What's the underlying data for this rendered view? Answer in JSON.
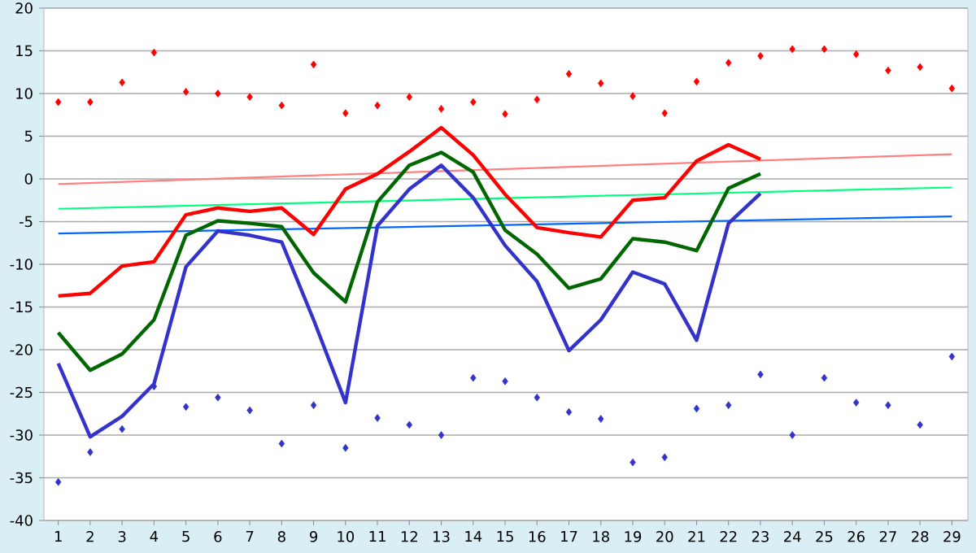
{
  "chart_data": {
    "type": "line",
    "categories": [
      "1",
      "2",
      "3",
      "4",
      "5",
      "6",
      "7",
      "8",
      "9",
      "10",
      "11",
      "12",
      "13",
      "14",
      "15",
      "16",
      "17",
      "18",
      "19",
      "20",
      "21",
      "22",
      "23",
      "24",
      "25",
      "26",
      "27",
      "28",
      "29"
    ],
    "series": [
      {
        "type": "scatter",
        "color": "#ff0000",
        "marker": "diamond",
        "values": [
          9.0,
          9.0,
          11.3,
          14.8,
          10.2,
          10.0,
          9.6,
          8.6,
          13.4,
          7.7,
          8.6,
          9.6,
          8.2,
          9.0,
          7.6,
          9.3,
          12.3,
          11.2,
          9.7,
          7.7,
          11.4,
          13.6,
          14.4,
          15.2,
          15.2,
          14.6,
          12.7,
          13.1,
          10.6
        ]
      },
      {
        "type": "scatter",
        "color": "#3333cc",
        "marker": "diamond",
        "values": [
          -35.5,
          -32.0,
          -29.3,
          -24.3,
          -26.7,
          -25.6,
          -27.1,
          -31.0,
          -26.5,
          -31.5,
          -28.0,
          -28.8,
          -30.0,
          -23.3,
          -23.7,
          -25.6,
          -27.3,
          -28.1,
          -33.2,
          -32.6,
          -26.9,
          -26.5,
          -22.9,
          -30.0,
          -23.3,
          -26.2,
          -26.5,
          -28.8,
          -20.8
        ]
      },
      {
        "type": "line",
        "color": "#ff8080",
        "x": [
          "1",
          "29"
        ],
        "values": [
          -0.6,
          2.9
        ]
      },
      {
        "type": "line",
        "color": "#00ff80",
        "x": [
          "1",
          "29"
        ],
        "values": [
          -3.5,
          -1.0
        ]
      },
      {
        "type": "line",
        "color": "#0066ff",
        "x": [
          "1",
          "29"
        ],
        "values": [
          -6.4,
          -4.4
        ]
      },
      {
        "type": "line",
        "color": "#ff0000",
        "values": [
          -13.7,
          -13.4,
          -10.2,
          -9.7,
          -4.2,
          -3.4,
          -3.8,
          -3.4,
          -6.5,
          -1.2,
          0.6,
          3.2,
          6.0,
          2.8,
          -1.8,
          -5.7,
          -6.3,
          -6.8,
          -2.5,
          -2.2,
          2.1,
          4.0,
          2.3,
          null,
          null,
          null,
          null,
          null,
          null
        ]
      },
      {
        "type": "line",
        "color": "#006600",
        "values": [
          -18.0,
          -22.4,
          -20.5,
          -16.5,
          -6.6,
          -4.9,
          -5.2,
          -5.6,
          -11.0,
          -14.4,
          -2.7,
          1.6,
          3.1,
          0.8,
          -6.0,
          -8.8,
          -12.8,
          -11.7,
          -7.0,
          -7.4,
          -8.4,
          -1.1,
          0.6,
          null,
          null,
          null,
          null,
          null,
          null
        ]
      },
      {
        "type": "line",
        "color": "#3333cc",
        "values": [
          -21.6,
          -30.2,
          -27.8,
          -24.0,
          -10.3,
          -6.1,
          -6.6,
          -7.4,
          -16.5,
          -26.2,
          -5.5,
          -1.2,
          1.6,
          -2.2,
          -7.8,
          -12.0,
          -20.1,
          -16.5,
          -10.9,
          -12.3,
          -18.9,
          -5.2,
          -1.7,
          null,
          null,
          null,
          null,
          null,
          null
        ]
      }
    ],
    "ylim": [
      -40,
      20
    ],
    "yticks": [
      -40,
      -35,
      -30,
      -25,
      -20,
      -15,
      -10,
      -5,
      0,
      5,
      10,
      15,
      20
    ],
    "grid": "y",
    "line_style": "solid"
  }
}
